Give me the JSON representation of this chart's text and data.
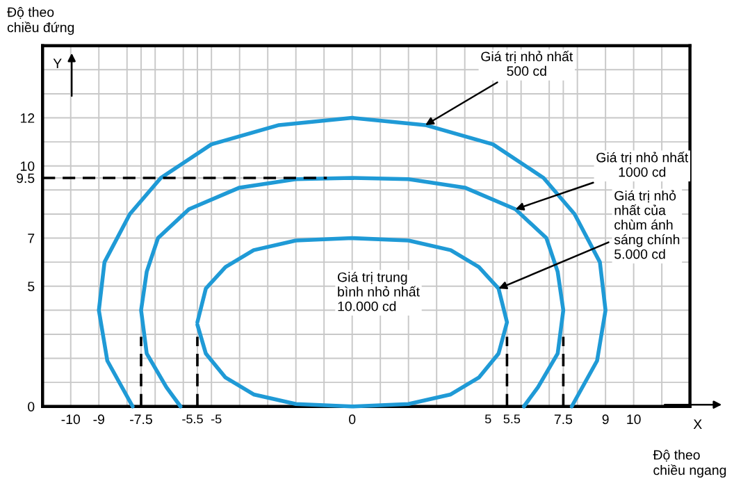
{
  "chart_data": {
    "type": "line",
    "xlabel": "Độ theo\nchiều ngang",
    "ylabel": "Độ theo\nchiều đứng",
    "xlim": [
      -11,
      12
    ],
    "ylim": [
      0,
      15
    ],
    "xticks": [
      {
        "value": -11,
        "label": null
      },
      -10,
      -9,
      {
        "value": -8,
        "label": null
      },
      -7.5,
      {
        "value": -7,
        "label": null
      },
      {
        "value": -6,
        "label": null
      },
      -5.5,
      -5,
      {
        "value": -4,
        "label": null
      },
      {
        "value": -3,
        "label": null
      },
      {
        "value": -2,
        "label": null
      },
      {
        "value": -1,
        "label": null
      },
      0,
      {
        "value": 1,
        "label": null
      },
      {
        "value": 2,
        "label": null
      },
      {
        "value": 3,
        "label": null
      },
      {
        "value": 4,
        "label": null
      },
      5,
      5.5,
      {
        "value": 6,
        "label": null
      },
      {
        "value": 7,
        "label": null
      },
      7.5,
      {
        "value": 8,
        "label": null
      },
      9,
      10,
      {
        "value": 11,
        "label": null
      },
      {
        "value": 12,
        "label": null
      }
    ],
    "yticks": [
      0,
      {
        "value": 1,
        "label": null
      },
      {
        "value": 2,
        "label": null
      },
      {
        "value": 3,
        "label": null
      },
      {
        "value": 4,
        "label": null
      },
      5,
      {
        "value": 6,
        "label": null
      },
      7,
      {
        "value": 8,
        "label": null
      },
      {
        "value": 9,
        "label": null
      },
      9.5,
      10,
      {
        "value": 11,
        "label": null
      },
      12,
      {
        "value": 13,
        "label": null
      },
      {
        "value": 14,
        "label": null
      },
      {
        "value": 15,
        "label": null
      }
    ],
    "grid": true,
    "line_style": "solid",
    "series": [
      {
        "color": "#1f9ad6",
        "x": [
          -7.8,
          -8.7,
          -9,
          -8.8,
          -7.9,
          -6.8,
          -5,
          -2.6,
          0,
          2.6,
          5,
          6.8,
          7.9,
          8.8,
          9,
          8.7,
          7.8
        ],
        "values": [
          0,
          1.9,
          4,
          6,
          8,
          9.5,
          10.9,
          11.7,
          12,
          11.7,
          10.9,
          9.5,
          8,
          6,
          4,
          1.9,
          0
        ]
      },
      {
        "color": "#1f9ad6",
        "x": [
          -6.1,
          -6.6,
          -7.3,
          -7.5,
          -7.3,
          -6.9,
          -5.8,
          -4,
          -2,
          0,
          2,
          4,
          5.8,
          6.9,
          7.3,
          7.5,
          7.3,
          6.6,
          6.1
        ],
        "values": [
          0,
          0.8,
          2.2,
          4,
          5.6,
          7,
          8.2,
          9.1,
          9.45,
          9.5,
          9.45,
          9.1,
          8.2,
          7,
          5.6,
          4,
          2.2,
          0.8,
          0
        ]
      },
      {
        "color": "#1f9ad6",
        "x": [
          -5.5,
          -5.2,
          -4.5,
          -3.5,
          -2,
          0,
          2,
          3.5,
          4.5,
          5.2,
          5.5,
          5.2,
          4.5,
          3.5,
          2,
          0,
          -2,
          -3.5,
          -4.5,
          -5.2,
          -5.5
        ],
        "values": [
          3.5,
          4.9,
          5.8,
          6.5,
          6.9,
          7,
          6.9,
          6.5,
          5.8,
          4.9,
          3.5,
          2.2,
          1.2,
          0.5,
          0.1,
          0,
          0.1,
          0.5,
          1.2,
          2.2,
          3.4
        ]
      },
      {
        "color": "#000000",
        "line_style": "dashed",
        "x": [
          -11,
          -0.9
        ],
        "values": [
          9.5,
          9.5
        ]
      },
      {
        "color": "#000000",
        "line_style": "dashed",
        "x": [
          -7.5,
          -7.5
        ],
        "values": [
          0,
          2.9
        ]
      },
      {
        "color": "#000000",
        "line_style": "dashed",
        "x": [
          -5.5,
          -5.5
        ],
        "values": [
          0,
          2.9
        ]
      },
      {
        "color": "#000000",
        "line_style": "dashed",
        "x": [
          5.5,
          5.5
        ],
        "values": [
          0,
          2.9
        ]
      },
      {
        "color": "#000000",
        "line_style": "dashed",
        "x": [
          7.5,
          7.5
        ],
        "values": [
          0,
          2.9
        ]
      }
    ],
    "annotations": [
      {
        "text": "Giá trị nhỏ nhất\n500 cd",
        "x": 2.6,
        "y": 11.7
      },
      {
        "text": "Giá trị nhỏ nhất\n1000 cd",
        "x": 5.8,
        "y": 8.2
      },
      {
        "text": "Giá trị nhỏ\nnhất của\nchùm ánh\nsáng chính\n5.000 cd",
        "x": 5.2,
        "y": 4.9
      },
      "Giá trị trung\nbình nhỏ nhất\n10.000 cd",
      "X",
      "Y"
    ]
  }
}
